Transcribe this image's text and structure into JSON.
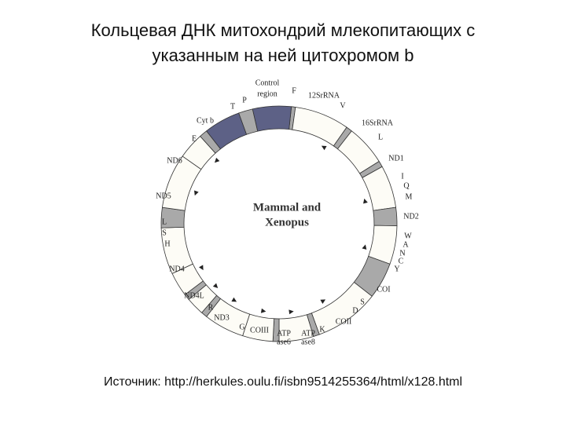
{
  "header": {
    "title_lines": [
      "Кольцевая ДНК митохондрий млекопитающих с",
      "указанным на ней цитохромом b"
    ]
  },
  "diagram": {
    "center_label": [
      "Mammal and",
      "Xenopus"
    ],
    "labels": [
      "Control",
      "region",
      "T",
      "P",
      "F",
      "12SrRNA",
      "V",
      "16SrRNA",
      "L",
      "ND1",
      "I",
      "Q",
      "M",
      "ND2",
      "W",
      "A",
      "N",
      "C",
      "Y",
      "COI",
      "S",
      "D",
      "COII",
      "K",
      "ATP",
      "ase8",
      "ATP",
      "ase6",
      "COIII",
      "G",
      "ND3",
      "R",
      "ND4L",
      "ND4",
      "H",
      "S",
      "L",
      "ND5",
      "ND6",
      "E",
      "Cyt b"
    ]
  },
  "footer": {
    "source": "Источник: http://herkules.oulu.fi/isbn9514255364/html/x128.html"
  }
}
